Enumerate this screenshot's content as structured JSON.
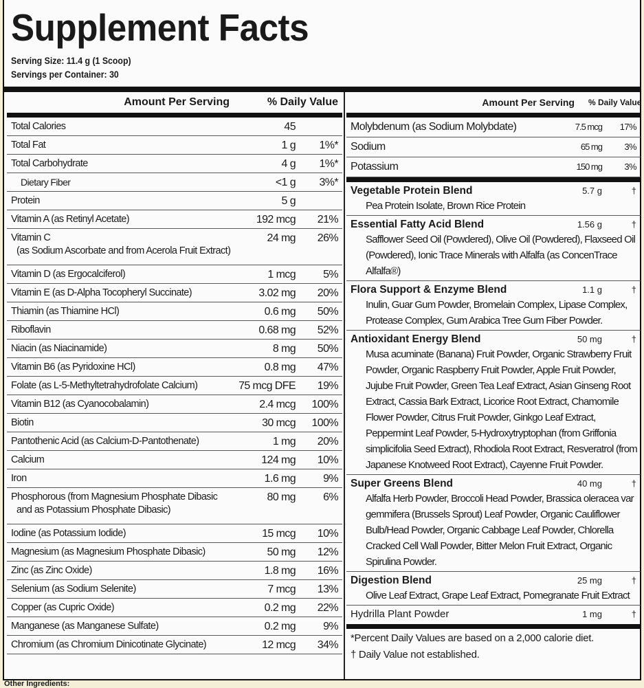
{
  "title": "Supplement Facts",
  "serving_size": "Serving Size: 11.4 g (1 Scoop)",
  "servings_per_container": "Servings per Container: 30",
  "left": {
    "header_amount": "Amount Per Serving",
    "header_dv": "% Daily Value",
    "rows": [
      {
        "name": "Total Calories",
        "amount": "45",
        "dv": ""
      },
      {
        "name": "Total Fat",
        "amount": "1 g",
        "dv": "1%*"
      },
      {
        "name": "Total Carbohydrate",
        "amount": "4 g",
        "dv": "1%*"
      },
      {
        "name": "Dietary Fiber",
        "amount": "<1 g",
        "dv": "3%*",
        "sub": true
      },
      {
        "name": "Protein",
        "amount": "5 g",
        "dv": ""
      },
      {
        "name": "Vitamin A (as Retinyl Acetate)",
        "amount": "192 mcg",
        "dv": "21%"
      },
      {
        "name": "Vitamin C",
        "name2": "(as Sodium Ascorbate and from Acerola Fruit Extract)",
        "amount": "24 mg",
        "dv": "26%"
      },
      {
        "name": "Vitamin D (as Ergocalciferol)",
        "amount": "1 mcg",
        "dv": "5%"
      },
      {
        "name": "Vitamin E (as D-Alpha Tocopheryl Succinate)",
        "amount": "3.02 mg",
        "dv": "20%"
      },
      {
        "name": "Thiamin (as Thiamine HCl)",
        "amount": "0.6 mg",
        "dv": "50%"
      },
      {
        "name": "Riboflavin",
        "amount": "0.68 mg",
        "dv": "52%"
      },
      {
        "name": "Niacin (as Niacinamide)",
        "amount": "8 mg",
        "dv": "50%"
      },
      {
        "name": "Vitamin B6 (as Pyridoxine HCl)",
        "amount": "0.8 mg",
        "dv": "47%"
      },
      {
        "name": "Folate (as L-5-Methyltetrahydrofolate Calcium)",
        "amount": "75 mcg DFE",
        "dv": "19%"
      },
      {
        "name": "Vitamin B12 (as Cyanocobalamin)",
        "amount": "2.4 mcg",
        "dv": "100%"
      },
      {
        "name": "Biotin",
        "amount": "30 mcg",
        "dv": "100%"
      },
      {
        "name": "Pantothenic Acid (as Calcium-D-Pantothenate)",
        "amount": "1 mg",
        "dv": "20%"
      },
      {
        "name": "Calcium",
        "amount": "124 mg",
        "dv": "10%"
      },
      {
        "name": "Iron",
        "amount": "1.6 mg",
        "dv": "9%"
      },
      {
        "name": "Phosphorous (from Magnesium Phosphate Dibasic",
        "name2": "and as Potassium Phosphate Dibasic)",
        "amount": "80 mg",
        "dv": "6%"
      },
      {
        "name": "Iodine (as Potassium Iodide)",
        "amount": "15 mcg",
        "dv": "10%"
      },
      {
        "name": "Magnesium (as Magnesium Phosphate Dibasic)",
        "amount": "50 mg",
        "dv": "12%"
      },
      {
        "name": "Zinc (as Zinc Oxide)",
        "amount": "1.8 mg",
        "dv": "16%"
      },
      {
        "name": "Selenium (as Sodium Selenite)",
        "amount": "7 mcg",
        "dv": "13%"
      },
      {
        "name": "Copper (as Cupric Oxide)",
        "amount": "0.2 mg",
        "dv": "22%"
      },
      {
        "name": "Manganese (as Manganese Sulfate)",
        "amount": "0.2 mg",
        "dv": "9%"
      },
      {
        "name": "Chromium (as Chromium Dinicotinate Glycinate)",
        "amount": "12 mcg",
        "dv": "34%"
      }
    ]
  },
  "right": {
    "header_amount": "Amount Per Serving",
    "header_dv": "% Daily Value",
    "rows": [
      {
        "name": "Molybdenum (as Sodium Molybdate)",
        "amount": "7.5 mcg",
        "dv": "17%"
      },
      {
        "name": "Sodium",
        "amount": "65 mg",
        "dv": "3%"
      },
      {
        "name": "Potassium",
        "amount": "150 mg",
        "dv": "3%"
      }
    ],
    "blends": [
      {
        "name": "Vegetable Protein Blend",
        "amount": "5.7 g",
        "dv": "†",
        "ingredients": "Pea Protein Isolate, Brown Rice Protein"
      },
      {
        "name": "Essential Fatty Acid Blend",
        "amount": "1.56 g",
        "dv": "†",
        "ingredients": "Safflower Seed Oil (Powdered), Olive Oil (Powdered), Flaxseed Oil (Powdered), Ionic Trace Minerals with Alfalfa (as ConcenTrace Alfalfa®)"
      },
      {
        "name": "Flora Support & Enzyme Blend",
        "amount": "1.1 g",
        "dv": "†",
        "ingredients": "Inulin, Guar Gum Powder, Bromelain Complex, Lipase Complex, Protease Complex, Gum Arabica Tree Gum Fiber Powder."
      },
      {
        "name": "Antioxidant Energy Blend",
        "amount": "50 mg",
        "dv": "†",
        "ingredients": "Musa acuminate (Banana) Fruit Powder, Organic Strawberry Fruit Powder, Organic Raspberry Fruit Powder, Apple Fruit Powder, Jujube Fruit Powder, Green Tea Leaf Extract, Asian Ginseng Root Extract, Cassia Bark Extract, Licorice Root Extract, Chamomile Flower Powder, Citrus Fruit Powder, Ginkgo Leaf Extract, Peppermint Leaf Powder, 5-Hydroxytryptophan (from Griffonia simplicifolia Seed Extract), Rhodiola Root Extract, Resveratrol (from Japanese Knotweed Root Extract), Cayenne Fruit Powder."
      },
      {
        "name": "Super Greens Blend",
        "amount": "40 mg",
        "dv": "†",
        "ingredients": "Alfalfa Herb Powder, Broccoli Head Powder, Brassica oleracea var gemmifera (Brussels Sprout) Leaf Powder, Organic Cauliflower Bulb/Head Powder, Organic Cabbage Leaf Powder, Chlorella Cracked Cell Wall Powder, Bitter Melon Fruit Extract, Organic Spirulina Powder."
      },
      {
        "name": "Digestion Blend",
        "amount": "25 mg",
        "dv": "†",
        "ingredients": "Olive Leaf Extract, Grape Leaf Extract, Pomegranate Fruit Extract"
      },
      {
        "name": "Hydrilla Plant Powder",
        "amount": "1 mg",
        "dv": "†",
        "ingredients": ""
      }
    ],
    "footnote1": "*Percent Daily Values are based on a 2,000 calorie diet.",
    "footnote2": "† Daily Value not established."
  },
  "other_ingredients": "Other Ingredients:"
}
